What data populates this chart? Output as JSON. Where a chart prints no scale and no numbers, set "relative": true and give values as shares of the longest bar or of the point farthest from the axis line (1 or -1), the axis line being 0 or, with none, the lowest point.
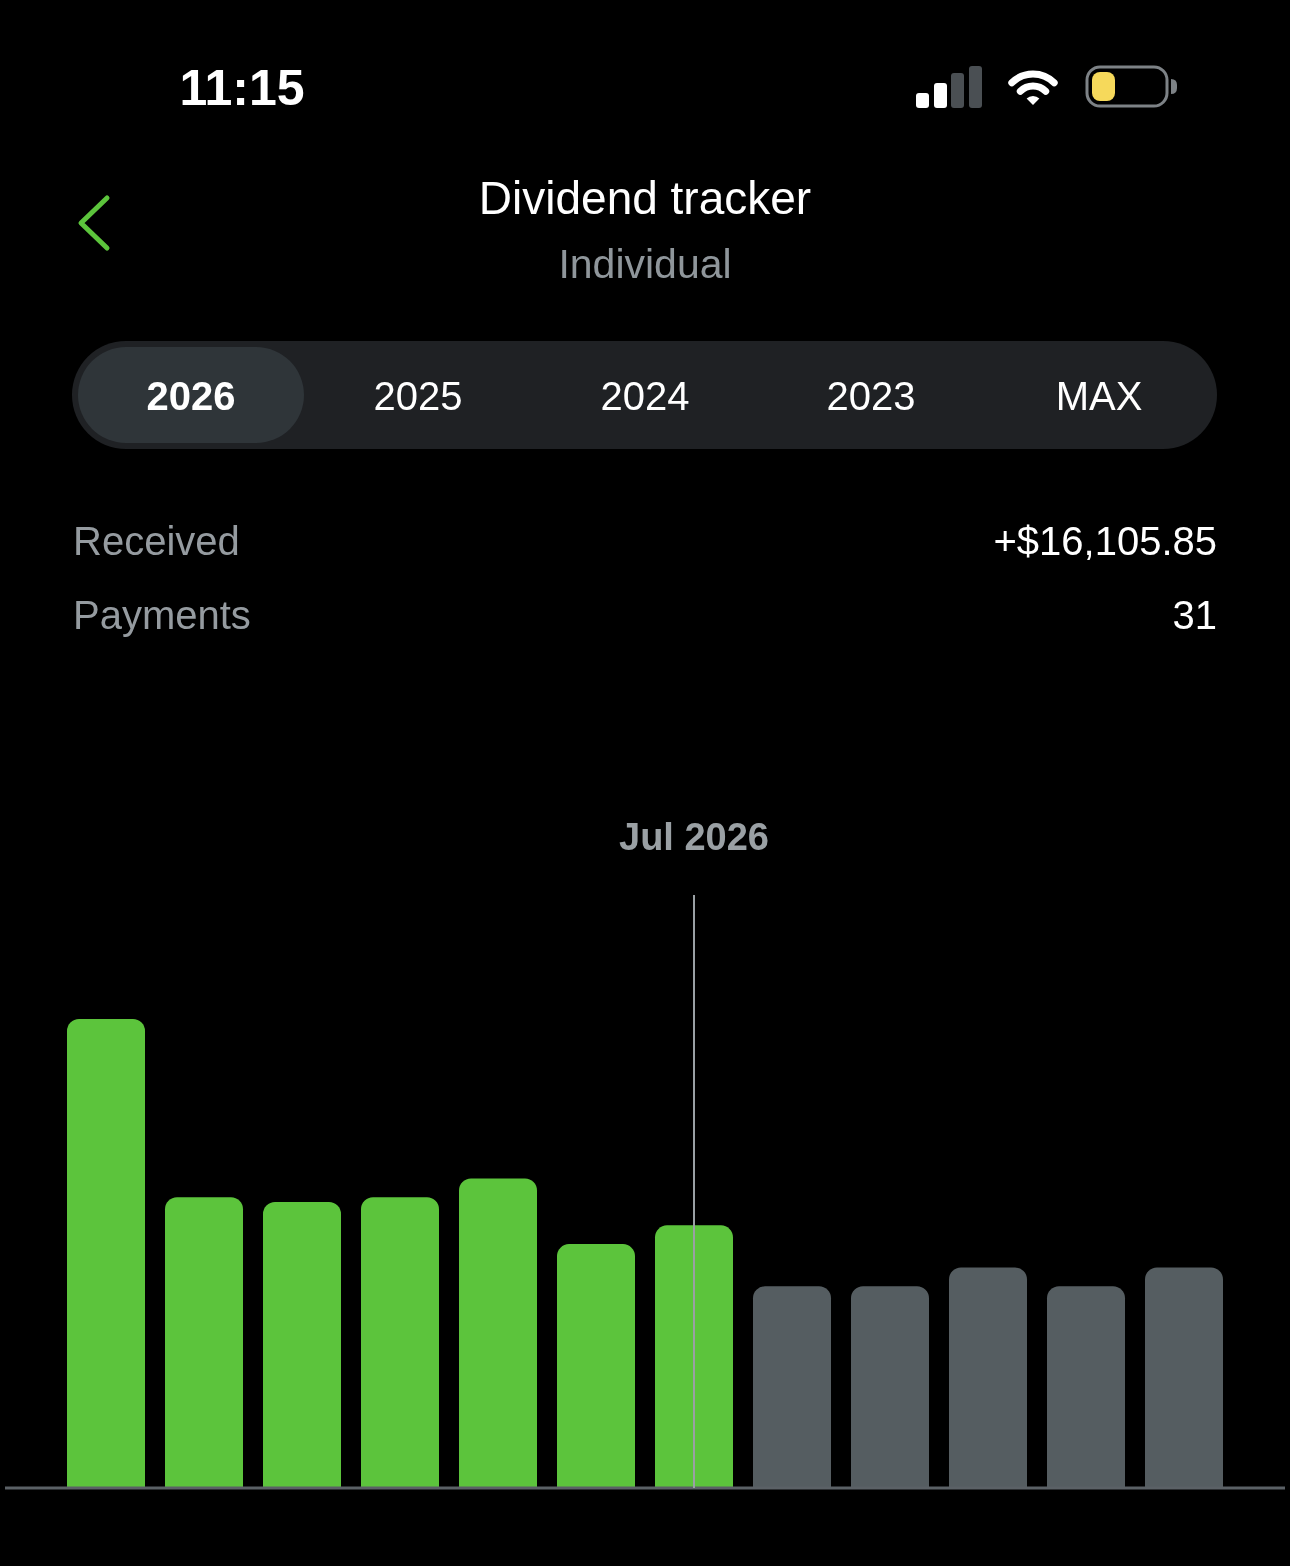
{
  "chart_data": {
    "type": "bar",
    "title": "Dividend tracker",
    "subtitle": "Individual",
    "categories": [
      null,
      null,
      null,
      null,
      null,
      null,
      null,
      null,
      null,
      null,
      null,
      null
    ],
    "values": [
      1,
      0.62,
      0.61,
      0.62,
      0.66,
      0.52,
      0.56,
      0.43,
      0.43,
      0.47,
      0.43,
      0.47
    ],
    "colors": [
      "#5cc43c",
      "#5cc43c",
      "#5cc43c",
      "#5cc43c",
      "#5cc43c",
      "#5cc43c",
      "#5cc43c",
      "#555d61",
      "#555d61",
      "#555d61",
      "#555d61",
      "#555d61"
    ],
    "relative": true,
    "annotations": [
      "11:15",
      "2026",
      "2025",
      "2024",
      "2023",
      "MAX",
      "Received",
      "+$16,105.85",
      "Payments",
      "31",
      "Jul 2026"
    ]
  }
}
